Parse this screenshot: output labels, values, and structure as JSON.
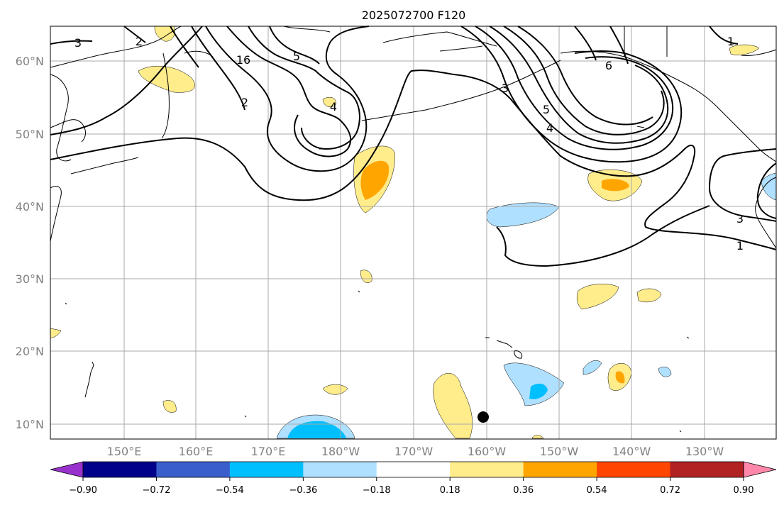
{
  "title": "2025072700 F120",
  "latitude_labels": [
    "60°N",
    "50°N",
    "40°N",
    "30°N",
    "20°N",
    "10°N"
  ],
  "longitude_labels": [
    "150°E",
    "160°E",
    "170°E",
    "180°W",
    "170°W",
    "160°W",
    "150°W",
    "140°W",
    "130°W"
  ],
  "contour_labels": [
    "3",
    "2",
    "16",
    "5",
    "4",
    "2",
    "3",
    "5",
    "4",
    "6",
    "1",
    "3",
    "1"
  ],
  "colorbar": {
    "ticks": [
      "−0.90",
      "−0.72",
      "−0.54",
      "−0.36",
      "−0.18",
      "0.18",
      "0.36",
      "0.54",
      "0.72",
      "0.90"
    ],
    "colors": [
      "#9932cc",
      "#00008b",
      "#3a5fcd",
      "#00bfff",
      "#b0e0ff",
      "#ffffff",
      "#ffec8b",
      "#ffa500",
      "#ff4500",
      "#b22222",
      "#ff88aa"
    ]
  },
  "fill_colors": {
    "light_yellow": "#ffec8b",
    "orange": "#ffa500",
    "light_blue": "#b0e0ff",
    "deep_sky_blue": "#00bfff"
  }
}
